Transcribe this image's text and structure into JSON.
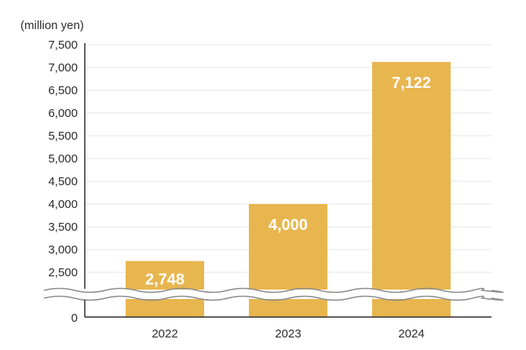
{
  "chart_data": {
    "type": "bar",
    "unit_label": "(million yen)",
    "categories": [
      "2022",
      "2023",
      "2024"
    ],
    "values": [
      2748,
      4000,
      7122
    ],
    "data_labels": [
      "2,748",
      "4,000",
      "7,122"
    ],
    "y_ticks": [
      {
        "value": 7500,
        "label": "7,500"
      },
      {
        "value": 7000,
        "label": "7,000"
      },
      {
        "value": 6500,
        "label": "6,500"
      },
      {
        "value": 6000,
        "label": "6,000"
      },
      {
        "value": 5500,
        "label": "5,500"
      },
      {
        "value": 5000,
        "label": "5,000"
      },
      {
        "value": 4500,
        "label": "4,500"
      },
      {
        "value": 4000,
        "label": "4,000"
      },
      {
        "value": 3500,
        "label": "3,500"
      },
      {
        "value": 3000,
        "label": "3,000"
      },
      {
        "value": 2500,
        "label": "2,500"
      }
    ],
    "zero_label": "0",
    "ylim": [
      2500,
      7500
    ],
    "axis_break": true,
    "grid": true,
    "bar_color": "#E8B64F",
    "grid_color": "#e6e6e6",
    "axis_color": "#2b2b2b",
    "break_color": "#8c8c8c"
  }
}
